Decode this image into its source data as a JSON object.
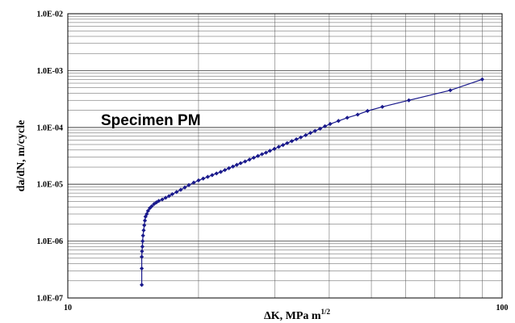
{
  "chart_data": {
    "type": "scatter",
    "xscale": "log",
    "yscale": "log",
    "xlim": [
      10,
      100
    ],
    "ylim": [
      1e-07,
      0.01
    ],
    "grid": true,
    "xlabel": "ΔK, MPa m",
    "xlabel_sup": "1/2",
    "ylabel": "da/dN, m/cycle",
    "annotation": "Specimen PM",
    "color": "#1a1a8c",
    "x_ticks": [
      {
        "value": 10,
        "label": "10"
      },
      {
        "value": 100,
        "label": "100"
      }
    ],
    "y_ticks": [
      {
        "value": 1e-07,
        "label": "1.0E-07"
      },
      {
        "value": 1e-06,
        "label": "1.0E-06"
      },
      {
        "value": 1e-05,
        "label": "1.0E-05"
      },
      {
        "value": 0.0001,
        "label": "1.0E-04"
      },
      {
        "value": 0.001,
        "label": "1.0E-03"
      },
      {
        "value": 0.01,
        "label": "1.0E-02"
      }
    ],
    "series": [
      {
        "x": [
          14.8,
          14.8,
          14.8,
          14.82,
          14.85,
          14.87,
          14.9,
          14.95,
          15.0,
          15.05,
          15.1,
          15.2,
          15.3,
          15.45,
          15.6,
          15.8,
          16.0,
          16.2,
          16.5,
          16.8,
          17.1,
          17.4,
          17.8,
          18.2,
          18.6,
          19.0,
          19.5,
          20.0,
          20.5,
          21.0,
          21.5,
          22.0,
          22.5,
          23.0,
          23.5,
          24.0,
          24.5,
          25.0,
          25.6,
          26.2,
          26.8,
          27.4,
          28.0,
          28.6,
          29.2,
          29.9,
          30.6,
          31.3,
          32.0,
          32.8,
          33.6,
          34.4,
          35.3,
          36.2,
          37.1,
          38.1,
          39.1,
          40.2,
          42.0,
          44.0,
          46.5,
          49.0,
          53.0,
          61.0,
          76.0,
          90.0
        ],
        "y": [
          1.7e-07,
          3.3e-07,
          5.3e-07,
          6.6e-07,
          8e-07,
          1e-06,
          1.25e-06,
          1.55e-06,
          1.9e-06,
          2.3e-06,
          2.7e-06,
          3e-06,
          3.4e-06,
          3.8e-06,
          4.1e-06,
          4.5e-06,
          4.8e-06,
          5.1e-06,
          5.4e-06,
          5.8e-06,
          6.2e-06,
          6.7e-06,
          7.3e-06,
          8e-06,
          8.8e-06,
          9.7e-06,
          1.07e-05,
          1.17e-05,
          1.26e-05,
          1.35e-05,
          1.45e-05,
          1.55e-05,
          1.65e-05,
          1.78e-05,
          1.92e-05,
          2.05e-05,
          2.2e-05,
          2.35e-05,
          2.52e-05,
          2.72e-05,
          2.93e-05,
          3.15e-05,
          3.38e-05,
          3.6e-05,
          3.88e-05,
          4.2e-05,
          4.55e-05,
          4.9e-05,
          5.3e-05,
          5.75e-05,
          6.2e-05,
          6.7e-05,
          7.3e-05,
          8e-05,
          8.7e-05,
          9.5e-05,
          0.000105,
          0.000115,
          0.00013,
          0.000148,
          0.000168,
          0.000195,
          0.00023,
          0.0003,
          0.00045,
          0.0007
        ]
      }
    ]
  }
}
